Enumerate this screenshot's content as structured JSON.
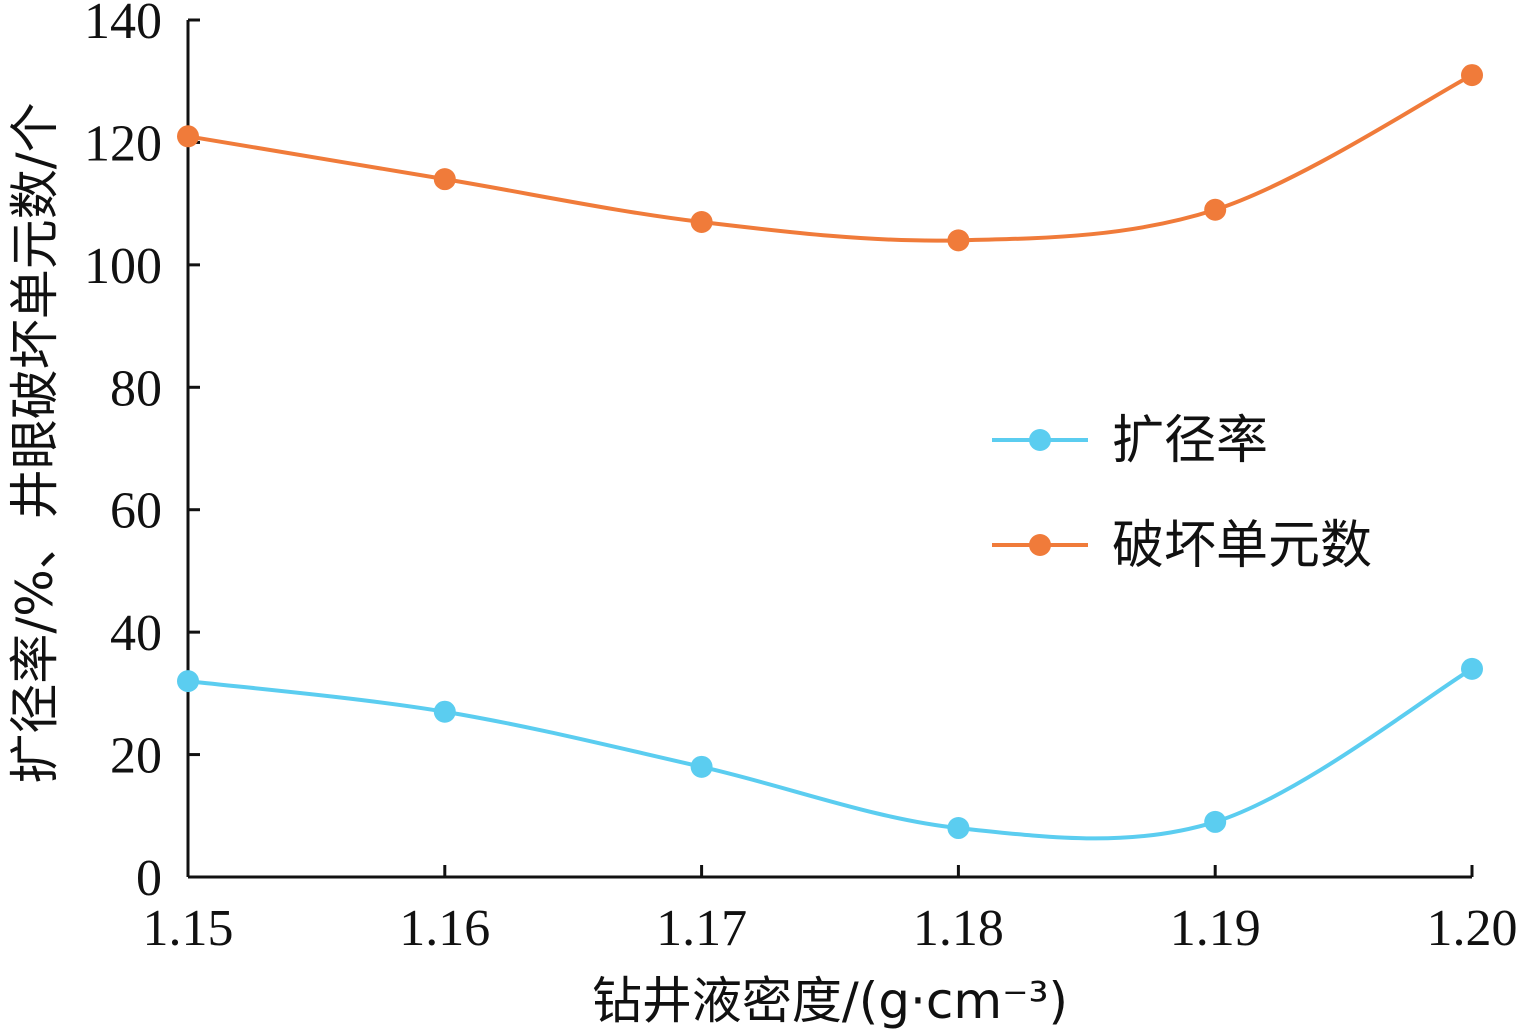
{
  "chart_data": {
    "type": "line",
    "x": [
      1.15,
      1.16,
      1.17,
      1.18,
      1.19,
      1.2
    ],
    "x_tick_labels": [
      "1.15",
      "1.16",
      "1.17",
      "1.18",
      "1.19",
      "1.20"
    ],
    "y_ticks": [
      0,
      20,
      40,
      60,
      80,
      100,
      120,
      140
    ],
    "y_tick_labels": [
      "0",
      "20",
      "40",
      "60",
      "80",
      "100",
      "120",
      "140"
    ],
    "xlim": [
      1.15,
      1.2
    ],
    "ylim": [
      0,
      140
    ],
    "xlabel": "钻井液密度/(g·cm⁻³)",
    "ylabel": "扩径率/%、井眼破坏单元数/个",
    "grid": false,
    "legend_position": "right-middle",
    "series": [
      {
        "name": "扩径率",
        "color": "#5bcdf0",
        "values": [
          32,
          27,
          18,
          8,
          9,
          34
        ]
      },
      {
        "name": "破坏单元数",
        "color": "#f07b3a",
        "values": [
          121,
          114,
          107,
          104,
          109,
          131
        ]
      }
    ]
  }
}
